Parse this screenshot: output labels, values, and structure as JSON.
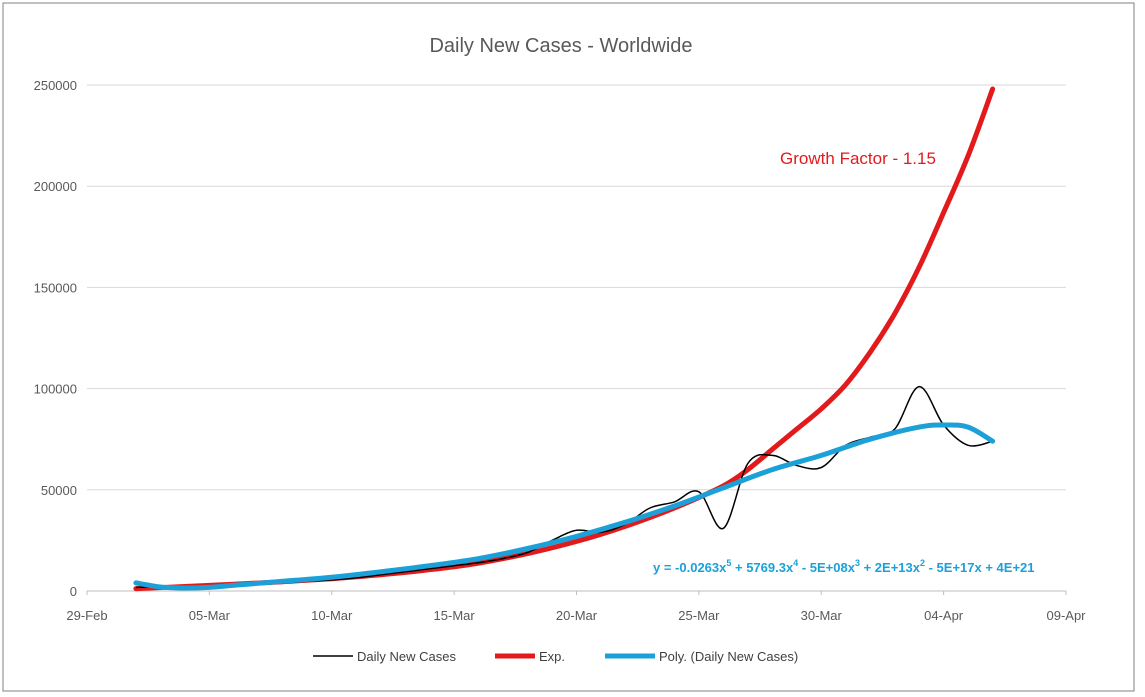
{
  "chart_data": {
    "type": "line",
    "title": "Daily New Cases - Worldwide",
    "xlabel": "",
    "ylabel": "",
    "x_ticks": [
      "29-Feb",
      "05-Mar",
      "10-Mar",
      "15-Mar",
      "20-Mar",
      "25-Mar",
      "30-Mar",
      "04-Apr",
      "09-Apr"
    ],
    "y_ticks": [
      "0",
      "50000",
      "100000",
      "150000",
      "200000",
      "250000"
    ],
    "ylim": [
      0,
      250000
    ],
    "xlim_days": [
      0,
      40
    ],
    "grid": "horizontal",
    "legend_position": "bottom",
    "annotations": {
      "growth": "Growth Factor - 1.15",
      "equation_prefix": "y = -0.0263x",
      "eq_sup1": "5",
      "eq_mid1": " + 5769.3x",
      "eq_sup2": "4",
      "eq_mid2": " - 5E+08x",
      "eq_sup3": "3",
      "eq_mid3": " + 2E+13x",
      "eq_sup4": "2",
      "eq_suffix": " - 5E+17x + 4E+21"
    },
    "colors": {
      "daily": "#000000",
      "exp": "#e31a1c",
      "poly": "#1ba1d8",
      "grid": "#d9d9d9",
      "axis": "#bfbfbf"
    },
    "series": [
      {
        "name": "Daily New Cases",
        "points": [
          [
            2,
            1800
          ],
          [
            3,
            2000
          ],
          [
            4,
            1900
          ],
          [
            5,
            2200
          ],
          [
            6,
            2800
          ],
          [
            7,
            3500
          ],
          [
            8,
            4000
          ],
          [
            9,
            4800
          ],
          [
            10,
            5500
          ],
          [
            11,
            6500
          ],
          [
            12,
            8000
          ],
          [
            13,
            9500
          ],
          [
            14,
            11000
          ],
          [
            15,
            12500
          ],
          [
            16,
            14000
          ],
          [
            17,
            16000
          ],
          [
            18,
            19000
          ],
          [
            19,
            25000
          ],
          [
            20,
            30000
          ],
          [
            21,
            29000
          ],
          [
            22,
            33000
          ],
          [
            23,
            41000
          ],
          [
            24,
            44000
          ],
          [
            25,
            49000
          ],
          [
            26,
            31000
          ],
          [
            27,
            63000
          ],
          [
            28,
            67000
          ],
          [
            29,
            62000
          ],
          [
            30,
            61000
          ],
          [
            31,
            72000
          ],
          [
            32,
            76000
          ],
          [
            33,
            80000
          ],
          [
            34,
            101000
          ],
          [
            35,
            82000
          ],
          [
            36,
            72000
          ],
          [
            37,
            74000
          ]
        ]
      },
      {
        "name": "Exp.",
        "points": [
          [
            2,
            1200
          ],
          [
            4,
            2200
          ],
          [
            6,
            3300
          ],
          [
            8,
            4600
          ],
          [
            10,
            6100
          ],
          [
            12,
            8000
          ],
          [
            14,
            10500
          ],
          [
            16,
            13800
          ],
          [
            18,
            18500
          ],
          [
            20,
            24500
          ],
          [
            22,
            32000
          ],
          [
            24,
            41000
          ],
          [
            26,
            52000
          ],
          [
            27,
            60000
          ],
          [
            28,
            70000
          ],
          [
            29,
            80000
          ],
          [
            30,
            90000
          ],
          [
            31,
            102000
          ],
          [
            32,
            118000
          ],
          [
            33,
            137000
          ],
          [
            34,
            160000
          ],
          [
            35,
            187000
          ],
          [
            36,
            215000
          ],
          [
            37,
            248000
          ]
        ]
      },
      {
        "name": "Poly. (Daily New Cases)",
        "points": [
          [
            2,
            4000
          ],
          [
            3,
            2000
          ],
          [
            4,
            1500
          ],
          [
            5,
            1800
          ],
          [
            6,
            2800
          ],
          [
            7,
            3800
          ],
          [
            8,
            4800
          ],
          [
            10,
            6800
          ],
          [
            12,
            9500
          ],
          [
            14,
            12500
          ],
          [
            16,
            16000
          ],
          [
            18,
            21000
          ],
          [
            20,
            27000
          ],
          [
            22,
            34000
          ],
          [
            24,
            42000
          ],
          [
            26,
            51000
          ],
          [
            28,
            60000
          ],
          [
            30,
            67000
          ],
          [
            32,
            75000
          ],
          [
            34,
            81000
          ],
          [
            35,
            82000
          ],
          [
            36,
            81000
          ],
          [
            37,
            74000
          ]
        ]
      }
    ]
  }
}
